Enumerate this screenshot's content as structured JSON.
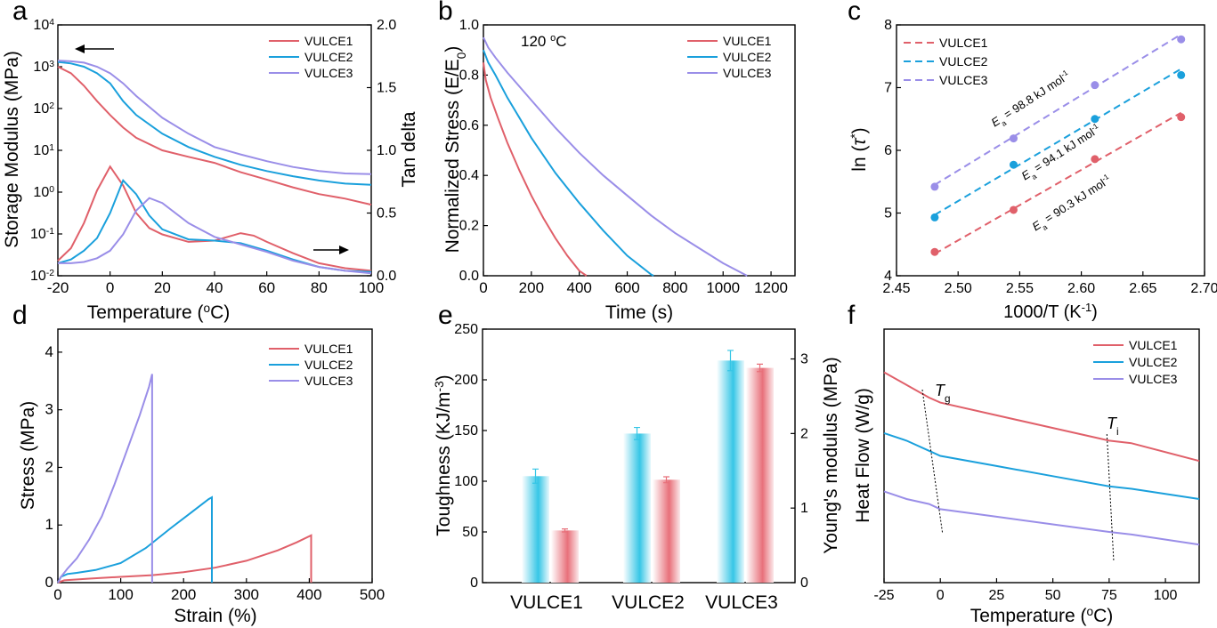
{
  "colors": {
    "VULCE1": "#e0606a",
    "VULCE2": "#1aa0dc",
    "VULCE3": "#9a8ee8",
    "toughness_axis": "#36c6e6",
    "modulus_axis": "#e8707a"
  },
  "chart_data": [
    {
      "panel": "a",
      "type": "line",
      "xlabel": "Temperature (oC)",
      "ylabel": "Storage Modulus (MPa)",
      "y2label": "Tan delta",
      "xlim": [
        -20,
        100
      ],
      "ylim": [
        0.01,
        10000
      ],
      "y_scale": "log",
      "y2lim": [
        0,
        2.0
      ],
      "xticks": [
        "-20",
        "0",
        "20",
        "40",
        "60",
        "80",
        "100"
      ],
      "yticks": [
        "10-2",
        "10-1",
        "100",
        "101",
        "102",
        "103",
        "104"
      ],
      "y2ticks": [
        "0.0",
        "0.5",
        "1.0",
        "1.5",
        "2.0"
      ],
      "legend": [
        "VULCE1",
        "VULCE2",
        "VULCE3"
      ],
      "legend_position": "top-right",
      "arrows": [
        "left",
        "right"
      ],
      "series": [
        {
          "name": "VULCE1",
          "axis": "left",
          "x": [
            -20,
            -15,
            -10,
            -5,
            0,
            5,
            10,
            20,
            30,
            40,
            50,
            60,
            70,
            80,
            90,
            100
          ],
          "y": [
            1000,
            700,
            350,
            150,
            70,
            35,
            20,
            10,
            7,
            5,
            3,
            2,
            1.3,
            0.9,
            0.7,
            0.5
          ]
        },
        {
          "name": "VULCE2",
          "axis": "left",
          "x": [
            -20,
            -15,
            -10,
            -5,
            0,
            5,
            10,
            20,
            30,
            40,
            50,
            60,
            70,
            80,
            90,
            100
          ],
          "y": [
            1300,
            1200,
            1000,
            700,
            400,
            150,
            70,
            25,
            12,
            7,
            4.5,
            3.2,
            2.4,
            1.9,
            1.6,
            1.5
          ]
        },
        {
          "name": "VULCE3",
          "axis": "left",
          "x": [
            -20,
            -15,
            -10,
            -5,
            0,
            5,
            10,
            20,
            30,
            40,
            50,
            60,
            70,
            80,
            90,
            100
          ],
          "y": [
            1400,
            1350,
            1250,
            1000,
            700,
            400,
            200,
            60,
            25,
            12,
            8,
            5.5,
            4,
            3.2,
            2.8,
            2.7
          ]
        },
        {
          "name": "VULCE1",
          "axis": "right",
          "x": [
            -20,
            -15,
            -10,
            -5,
            0,
            5,
            10,
            15,
            20,
            30,
            40,
            45,
            50,
            55,
            60,
            70,
            80,
            90,
            100
          ],
          "y": [
            0.12,
            0.22,
            0.42,
            0.68,
            0.87,
            0.72,
            0.5,
            0.38,
            0.33,
            0.27,
            0.28,
            0.31,
            0.34,
            0.32,
            0.27,
            0.18,
            0.1,
            0.06,
            0.04
          ]
        },
        {
          "name": "VULCE2",
          "axis": "right",
          "x": [
            -20,
            -15,
            -10,
            -5,
            0,
            5,
            10,
            15,
            20,
            30,
            40,
            50,
            60,
            70,
            80,
            90,
            100
          ],
          "y": [
            0.1,
            0.13,
            0.2,
            0.3,
            0.5,
            0.76,
            0.65,
            0.48,
            0.37,
            0.29,
            0.28,
            0.26,
            0.2,
            0.13,
            0.07,
            0.04,
            0.03
          ]
        },
        {
          "name": "VULCE3",
          "axis": "right",
          "x": [
            -20,
            -15,
            -10,
            -5,
            0,
            5,
            10,
            15,
            20,
            30,
            40,
            50,
            60,
            70,
            80,
            90,
            100
          ],
          "y": [
            0.1,
            0.1,
            0.11,
            0.14,
            0.2,
            0.33,
            0.52,
            0.62,
            0.58,
            0.42,
            0.31,
            0.25,
            0.19,
            0.12,
            0.07,
            0.04,
            0.02
          ]
        }
      ]
    },
    {
      "panel": "b",
      "type": "line",
      "xlabel": "Time (s)",
      "ylabel": "Normalized Stress (E/E0)",
      "xlim": [
        0,
        1300
      ],
      "ylim": [
        0,
        1.0
      ],
      "xticks": [
        "0",
        "200",
        "400",
        "600",
        "800",
        "1000",
        "1200"
      ],
      "yticks": [
        "0.0",
        "0.2",
        "0.4",
        "0.6",
        "0.8",
        "1.0"
      ],
      "annotation": "120 oC",
      "legend": [
        "VULCE1",
        "VULCE2",
        "VULCE3"
      ],
      "legend_position": "top-right",
      "series": [
        {
          "name": "VULCE1",
          "x": [
            0,
            10,
            30,
            60,
            100,
            150,
            200,
            250,
            300,
            350,
            400,
            430
          ],
          "y": [
            0.85,
            0.78,
            0.71,
            0.63,
            0.53,
            0.42,
            0.32,
            0.23,
            0.15,
            0.08,
            0.02,
            0
          ]
        },
        {
          "name": "VULCE2",
          "x": [
            0,
            20,
            50,
            100,
            150,
            200,
            300,
            400,
            500,
            600,
            700,
            710
          ],
          "y": [
            0.9,
            0.85,
            0.8,
            0.71,
            0.63,
            0.55,
            0.41,
            0.29,
            0.18,
            0.08,
            0.005,
            0
          ]
        },
        {
          "name": "VULCE3",
          "x": [
            0,
            20,
            50,
            100,
            200,
            300,
            400,
            500,
            600,
            700,
            800,
            900,
            1000,
            1100
          ],
          "y": [
            0.95,
            0.91,
            0.87,
            0.81,
            0.7,
            0.59,
            0.49,
            0.4,
            0.32,
            0.24,
            0.17,
            0.11,
            0.05,
            0
          ]
        }
      ]
    },
    {
      "panel": "c",
      "type": "scatter",
      "xlabel": "1000/T (K-1)",
      "ylabel": "ln (τ*)",
      "xlim": [
        2.45,
        2.7
      ],
      "ylim": [
        4,
        8
      ],
      "xticks": [
        "2.45",
        "2.50",
        "2.55",
        "2.60",
        "2.65",
        "2.70"
      ],
      "yticks": [
        "4",
        "5",
        "6",
        "7",
        "8"
      ],
      "legend": [
        "VULCE1",
        "VULCE2",
        "VULCE3"
      ],
      "legend_position": "top-left",
      "annotations": [
        "Ea = 98.8 kJ mol-1",
        "Ea = 94.1 kJ mol-1",
        "Ea = 90.3 kJ mol-1"
      ],
      "series": [
        {
          "name": "VULCE1",
          "x": [
            2.481,
            2.545,
            2.611,
            2.681
          ],
          "y": [
            4.38,
            5.05,
            5.86,
            6.53
          ],
          "fit": [
            [
              2.481,
              4.35
            ],
            [
              2.681,
              6.6
            ]
          ]
        },
        {
          "name": "VULCE2",
          "x": [
            2.481,
            2.545,
            2.611,
            2.681
          ],
          "y": [
            4.93,
            5.77,
            6.5,
            7.2
          ],
          "fit": [
            [
              2.481,
              4.97
            ],
            [
              2.681,
              7.3
            ]
          ]
        },
        {
          "name": "VULCE3",
          "x": [
            2.481,
            2.545,
            2.611,
            2.681
          ],
          "y": [
            5.42,
            6.19,
            7.04,
            7.77
          ],
          "fit": [
            [
              2.481,
              5.45
            ],
            [
              2.681,
              7.85
            ]
          ]
        }
      ]
    },
    {
      "panel": "d",
      "type": "line",
      "xlabel": "Strain (%)",
      "ylabel": "Stress (MPa)",
      "xlim": [
        0,
        500
      ],
      "ylim": [
        0,
        4.4
      ],
      "xticks": [
        "0",
        "100",
        "200",
        "300",
        "400",
        "500"
      ],
      "yticks": [
        "0",
        "1",
        "2",
        "3",
        "4"
      ],
      "legend": [
        "VULCE1",
        "VULCE2",
        "VULCE3"
      ],
      "legend_position": "top-right",
      "series": [
        {
          "name": "VULCE1",
          "x": [
            0,
            10,
            50,
            100,
            150,
            200,
            250,
            300,
            350,
            380,
            403,
            403
          ],
          "y": [
            0,
            0.04,
            0.07,
            0.1,
            0.13,
            0.18,
            0.26,
            0.38,
            0.56,
            0.7,
            0.82,
            0
          ]
        },
        {
          "name": "VULCE2",
          "x": [
            0,
            5,
            15,
            30,
            60,
            100,
            140,
            180,
            210,
            240,
            245,
            245
          ],
          "y": [
            0,
            0.1,
            0.15,
            0.17,
            0.22,
            0.34,
            0.6,
            0.95,
            1.2,
            1.45,
            1.48,
            0
          ]
        },
        {
          "name": "VULCE3",
          "x": [
            0,
            5,
            15,
            30,
            50,
            70,
            90,
            110,
            130,
            145,
            150,
            150
          ],
          "y": [
            0,
            0.1,
            0.24,
            0.42,
            0.75,
            1.15,
            1.7,
            2.3,
            2.9,
            3.4,
            3.62,
            0
          ]
        }
      ]
    },
    {
      "panel": "e",
      "type": "bar",
      "categories": [
        "VULCE1",
        "VULCE2",
        "VULCE3"
      ],
      "ylabel": "Toughness (KJ/m-3)",
      "y2label": "Young's modulus (MPa)",
      "ylim": [
        0,
        250
      ],
      "y2lim": [
        0,
        3.4
      ],
      "yticks": [
        "0",
        "50",
        "100",
        "150",
        "200",
        "250"
      ],
      "y2ticks": [
        "0",
        "1",
        "2",
        "3"
      ],
      "series": [
        {
          "name": "Toughness",
          "axis": "left",
          "values": [
            105,
            147,
            219
          ],
          "errors": [
            7,
            6,
            10
          ]
        },
        {
          "name": "Young's modulus",
          "axis": "right",
          "values": [
            0.7,
            1.38,
            2.88
          ],
          "errors": [
            0.02,
            0.04,
            0.05
          ]
        }
      ]
    },
    {
      "panel": "f",
      "type": "line",
      "xlabel": "Temperature (oC)",
      "ylabel": "Heat Flow (W/g)",
      "xlim": [
        -25,
        115
      ],
      "xticks": [
        "-25",
        "0",
        "25",
        "50",
        "75",
        "100"
      ],
      "ylim": [
        0,
        1
      ],
      "legend": [
        "VULCE1",
        "VULCE2",
        "VULCE3"
      ],
      "legend_position": "top-right",
      "annotations": [
        "Tg",
        "Ti"
      ],
      "series": [
        {
          "name": "VULCE1",
          "x": [
            -25,
            -15,
            -5,
            0,
            25,
            50,
            75,
            85,
            115
          ],
          "y": [
            0.83,
            0.78,
            0.73,
            0.71,
            0.66,
            0.61,
            0.56,
            0.55,
            0.48
          ]
        },
        {
          "name": "VULCE2",
          "x": [
            -25,
            -15,
            -5,
            0,
            25,
            50,
            75,
            85,
            115
          ],
          "y": [
            0.59,
            0.56,
            0.52,
            0.5,
            0.46,
            0.42,
            0.38,
            0.37,
            0.33
          ]
        },
        {
          "name": "VULCE3",
          "x": [
            -25,
            -15,
            -5,
            0,
            25,
            50,
            75,
            85,
            115
          ],
          "y": [
            0.36,
            0.33,
            0.31,
            0.29,
            0.26,
            0.23,
            0.2,
            0.19,
            0.15
          ]
        }
      ]
    }
  ],
  "panel_labels": [
    "a",
    "b",
    "c",
    "d",
    "e",
    "f"
  ]
}
